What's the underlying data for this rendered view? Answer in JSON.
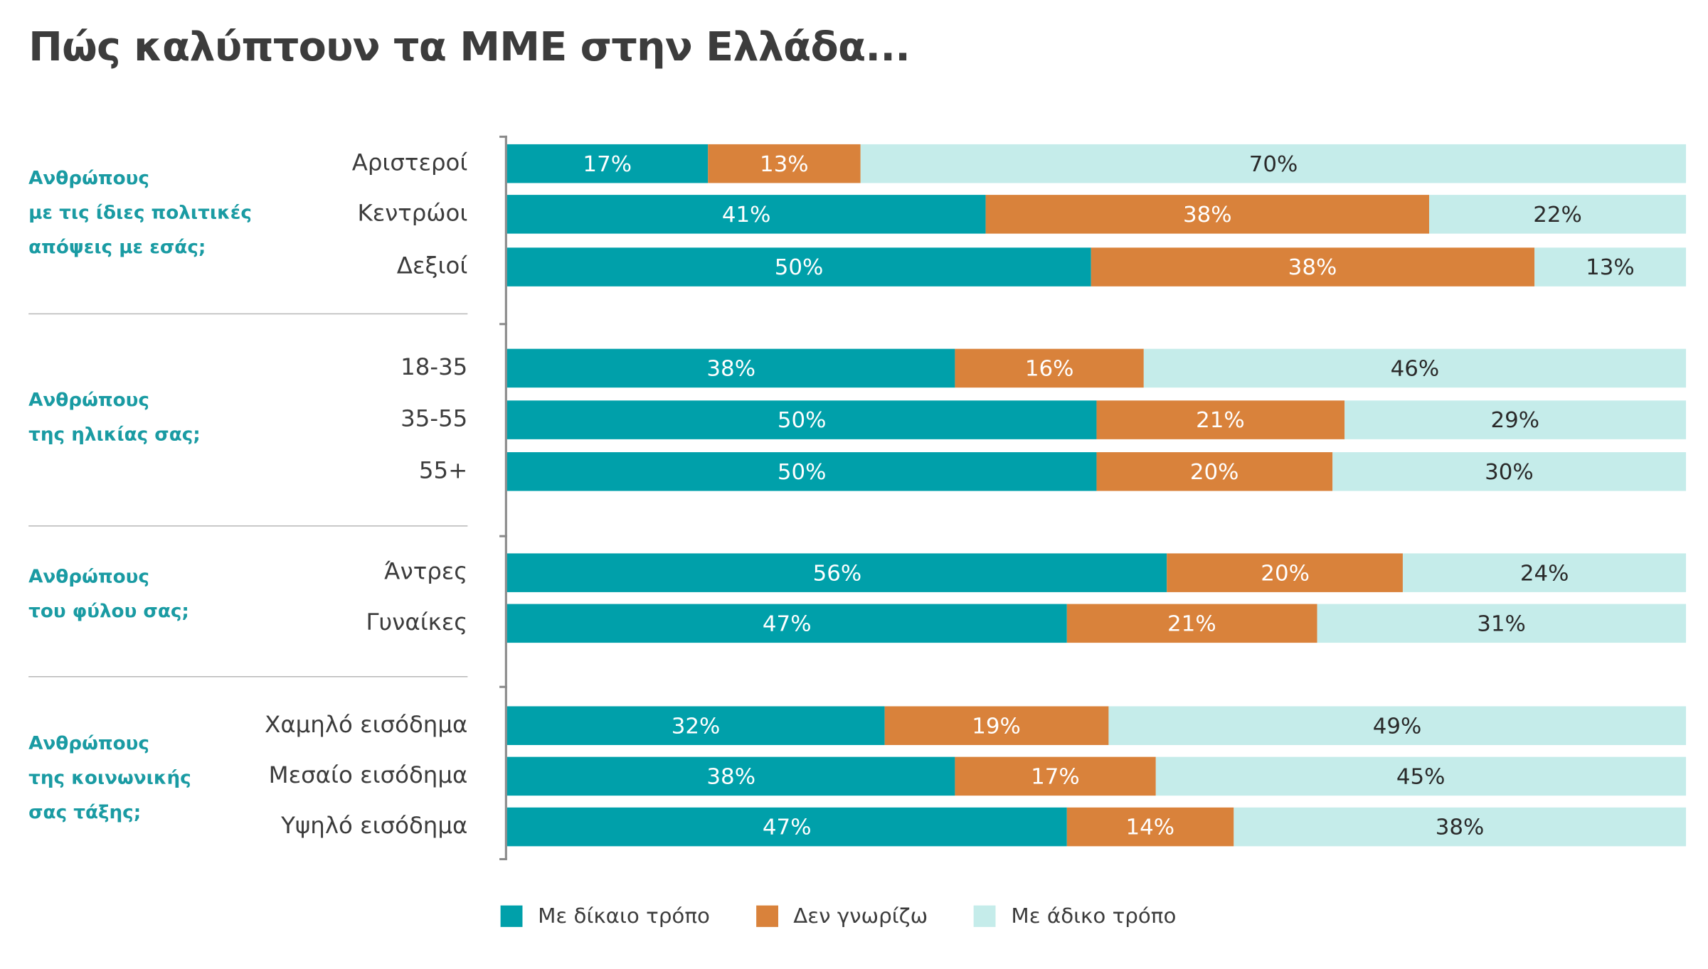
{
  "chart_data": {
    "type": "bar",
    "orientation": "horizontal",
    "stacked": true,
    "title": "Πώς καλύπτουν τα ΜΜΕ στην Ελλάδα...",
    "xlim": [
      0,
      100
    ],
    "legend_position": "bottom",
    "colors": {
      "fair": "#00a0aa",
      "dont_know": "#d9823b",
      "unfair": "#c5ecea"
    },
    "series_names": [
      "Με δίκαιο τρόπο",
      "Δεν γνωρίζω",
      "Με άδικο τρόπο"
    ],
    "groups": [
      {
        "label_lines": [
          "Ανθρώπους",
          "με τις ίδιες πολιτικές",
          "απόψεις με εσάς;"
        ],
        "rows": [
          {
            "category": "Αριστεροί",
            "values": [
              17,
              13,
              70
            ],
            "labels": [
              "17%",
              "13%",
              "70%"
            ]
          },
          {
            "category": "Κεντρώοι",
            "values": [
              41,
              38,
              22
            ],
            "labels": [
              "41%",
              "38%",
              "22%"
            ]
          },
          {
            "category": "Δεξιοί",
            "values": [
              50,
              38,
              13
            ],
            "labels": [
              "50%",
              "38%",
              "13%"
            ]
          }
        ]
      },
      {
        "label_lines": [
          "Ανθρώπους",
          "της ηλικίας σας;"
        ],
        "rows": [
          {
            "category": "18-35",
            "values": [
              38,
              16,
              46
            ],
            "labels": [
              "38%",
              "16%",
              "46%"
            ]
          },
          {
            "category": "35-55",
            "values": [
              50,
              21,
              29
            ],
            "labels": [
              "50%",
              "21%",
              "29%"
            ]
          },
          {
            "category": "55+",
            "values": [
              50,
              20,
              30
            ],
            "labels": [
              "50%",
              "20%",
              "30%"
            ]
          }
        ]
      },
      {
        "label_lines": [
          "Ανθρώπους",
          "του φύλου σας;"
        ],
        "rows": [
          {
            "category": "Άντρες",
            "values": [
              56,
              20,
              24
            ],
            "labels": [
              "56%",
              "20%",
              "24%"
            ]
          },
          {
            "category": "Γυναίκες",
            "values": [
              47,
              21,
              31
            ],
            "labels": [
              "47%",
              "21%",
              "31%"
            ]
          }
        ]
      },
      {
        "label_lines": [
          "Ανθρώπους",
          "της κοινωνικής",
          "σας τάξης;"
        ],
        "rows": [
          {
            "category": "Χαμηλό εισόδημα",
            "values": [
              32,
              19,
              49
            ],
            "labels": [
              "32%",
              "19%",
              "49%"
            ]
          },
          {
            "category": "Μεσαίο εισόδημα",
            "values": [
              38,
              17,
              45
            ],
            "labels": [
              "38%",
              "17%",
              "45%"
            ]
          },
          {
            "category": "Υψηλό εισόδημα",
            "values": [
              47,
              14,
              38
            ],
            "labels": [
              "47%",
              "14%",
              "38%"
            ]
          }
        ]
      }
    ]
  }
}
